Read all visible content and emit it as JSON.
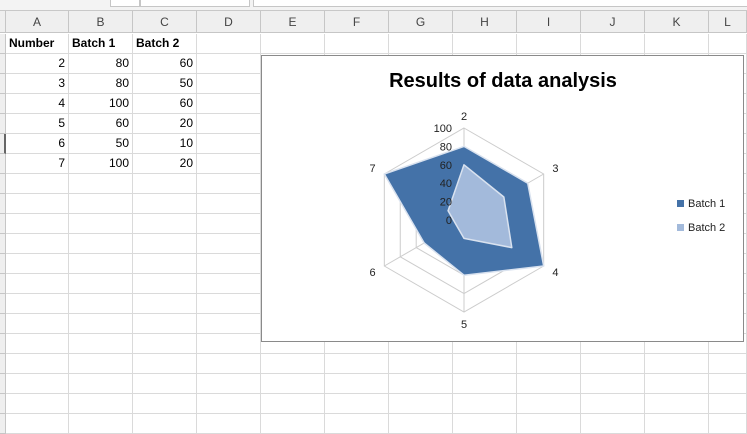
{
  "columns": [
    "A",
    "B",
    "C",
    "D",
    "E",
    "F",
    "G",
    "H",
    "I",
    "J",
    "K",
    "L"
  ],
  "table": {
    "headers": [
      "Number",
      "Batch 1",
      "Batch 2"
    ],
    "rows": [
      [
        "2",
        "80",
        "60"
      ],
      [
        "3",
        "80",
        "50"
      ],
      [
        "4",
        "100",
        "60"
      ],
      [
        "5",
        "60",
        "20"
      ],
      [
        "6",
        "50",
        "10"
      ],
      [
        "7",
        "100",
        "20"
      ]
    ]
  },
  "chart_data": {
    "type": "radar",
    "title": "Results of data analysis",
    "categories": [
      "2",
      "3",
      "4",
      "5",
      "6",
      "7"
    ],
    "series": [
      {
        "name": "Batch 1",
        "values": [
          80,
          80,
          100,
          60,
          50,
          100
        ],
        "color": "#4472a8"
      },
      {
        "name": "Batch 2",
        "values": [
          60,
          50,
          60,
          20,
          10,
          20
        ],
        "color": "#a3badb"
      }
    ],
    "rlim": [
      0,
      100
    ],
    "r_ticks": [
      "0",
      "20",
      "40",
      "60",
      "80",
      "100"
    ],
    "legend_position": "right"
  },
  "colors": {
    "grid": "#cccccc",
    "cell_border": "#dadada",
    "header_bg": "#efefef"
  }
}
